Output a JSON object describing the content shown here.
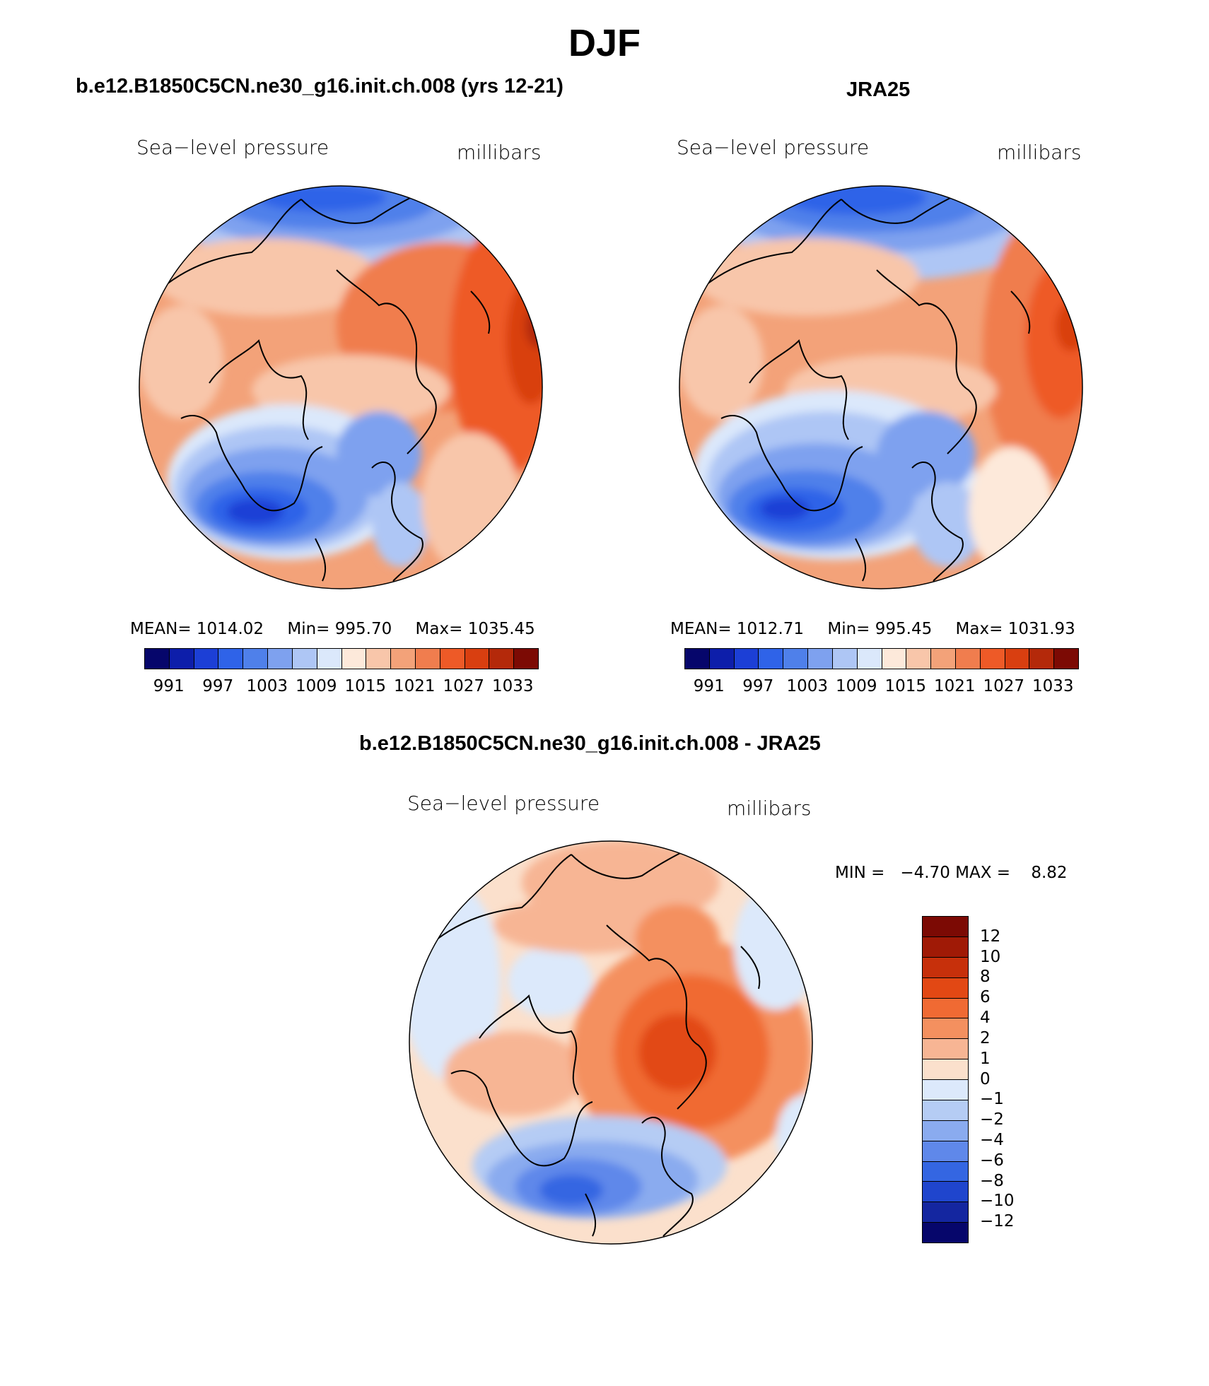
{
  "title": "DJF",
  "panels": {
    "model": {
      "title": "b.e12.B1850C5CN.ne30_g16.init.ch.008 (yrs 12-21)",
      "variable": "Sea−level pressure",
      "units": "millibars",
      "stats": {
        "mean_label": "MEAN=",
        "mean": "1014.02",
        "min_label": "Min=",
        "min": "995.70",
        "max_label": "Max=",
        "max": "1035.45"
      },
      "colorbar_ticks": [
        "991",
        "997",
        "1003",
        "1009",
        "1015",
        "1021",
        "1027",
        "1033"
      ]
    },
    "obs": {
      "title": "JRA25",
      "variable": "Sea−level pressure",
      "units": "millibars",
      "stats": {
        "mean_label": "MEAN=",
        "mean": "1012.71",
        "min_label": "Min=",
        "min": "995.45",
        "max_label": "Max=",
        "max": "1031.93"
      },
      "colorbar_ticks": [
        "991",
        "997",
        "1003",
        "1009",
        "1015",
        "1021",
        "1027",
        "1033"
      ]
    },
    "diff": {
      "title": "b.e12.B1850C5CN.ne30_g16.init.ch.008 - JRA25",
      "variable": "Sea−level pressure",
      "units": "millibars",
      "stats": {
        "min_label": "MIN =",
        "min": "−4.70",
        "max_label": "MAX =",
        "max": "8.82"
      },
      "colorbar_ticks": [
        "12",
        "10",
        "8",
        "6",
        "4",
        "2",
        "1",
        "0",
        "−1",
        "−2",
        "−4",
        "−6",
        "−8",
        "−10",
        "−12"
      ]
    }
  },
  "colors": {
    "full_field": [
      "#06066b",
      "#0d1eaa",
      "#1c3fd6",
      "#2f63e8",
      "#4f80ea",
      "#7ea1ef",
      "#aec6f5",
      "#dbe8fb",
      "#fde9da",
      "#f8c6aa",
      "#f3a279",
      "#f07d4e",
      "#ee5a27",
      "#d93f10",
      "#b4290a",
      "#7c0a04"
    ],
    "difference": [
      "#7c0a04",
      "#a01a06",
      "#c7300b",
      "#e24814",
      "#f06a33",
      "#f4905f",
      "#f7b594",
      "#fbe0cc",
      "#dce9fb",
      "#b5ccf4",
      "#8aabef",
      "#5f88ea",
      "#3466e2",
      "#1f45cd",
      "#1426a0",
      "#06066b"
    ]
  }
}
